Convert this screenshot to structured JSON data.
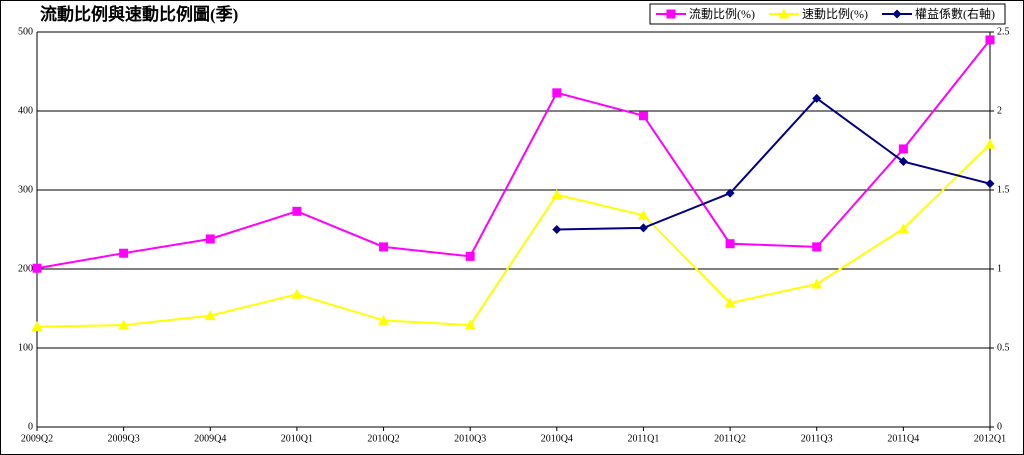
{
  "chart_data": {
    "type": "line",
    "title": "流動比例與速動比例圖(季)",
    "categories": [
      "2009Q2",
      "2009Q3",
      "2009Q4",
      "2010Q1",
      "2010Q2",
      "2010Q3",
      "2010Q4",
      "2011Q1",
      "2011Q2",
      "2011Q3",
      "2011Q4",
      "2012Q1"
    ],
    "series": [
      {
        "name": "流動比例(%)",
        "color": "#ff00ff",
        "marker": "square",
        "values": [
          201,
          220,
          238,
          273,
          228,
          216,
          423,
          394,
          232,
          228,
          352,
          490
        ]
      },
      {
        "name": "速動比例(%)",
        "color": "#ffff00",
        "marker": "triangle",
        "values": [
          127,
          129,
          141,
          168,
          135,
          129,
          294,
          268,
          157,
          181,
          251,
          358
        ]
      },
      {
        "name": "權益係數(右軸)",
        "color": "#000080",
        "marker": "diamond",
        "axis": "y2",
        "values": [
          null,
          null,
          null,
          null,
          null,
          null,
          1.25,
          1.26,
          1.48,
          2.08,
          1.68,
          1.54
        ]
      }
    ],
    "ylim": [
      0,
      500
    ],
    "yticks": [
      0,
      100,
      200,
      300,
      400,
      500
    ],
    "y2lim": [
      0,
      2.5
    ],
    "y2ticks": [
      0,
      0.5,
      1,
      1.5,
      2,
      2.5
    ],
    "grid": true,
    "legend": "top-right"
  }
}
